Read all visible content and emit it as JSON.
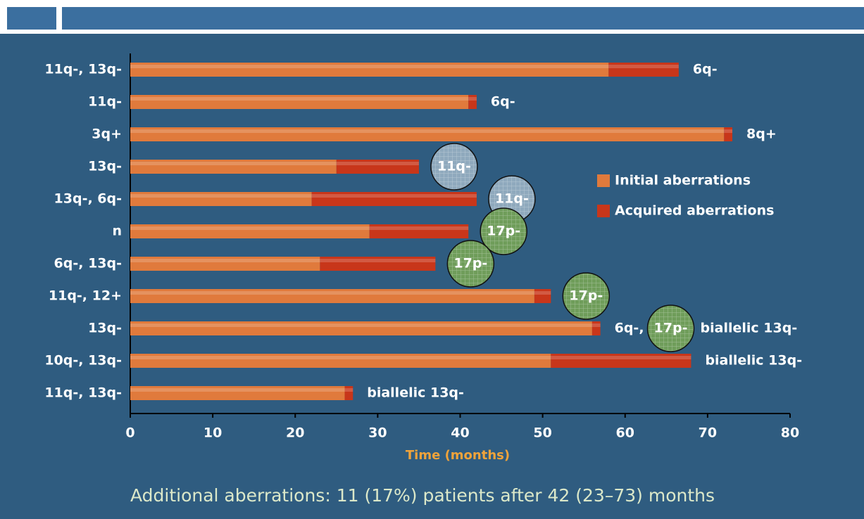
{
  "chart_data": {
    "type": "stacked-bar-horizontal",
    "categories": [
      "11q-, 13q-",
      "11q-",
      "3q+",
      "13q-",
      "13q-, 6q-",
      "n",
      "6q-, 13q-",
      "11q-, 12+",
      "13q-",
      "10q-, 13q-",
      "11q-, 13q-"
    ],
    "series": [
      {
        "name": "Initial aberrations",
        "color": "#e07a3c",
        "values": [
          58,
          41,
          72,
          25,
          22,
          29,
          23,
          49,
          56,
          51,
          26
        ]
      },
      {
        "name": "Acquired aberrations",
        "color": "#c8361a",
        "values": [
          8.5,
          1,
          1,
          10,
          20,
          12,
          14,
          2,
          1,
          17,
          1
        ]
      }
    ],
    "annotations": [
      [
        {
          "text": "6q-"
        }
      ],
      [
        {
          "text": "6q-"
        }
      ],
      [
        {
          "text": "8q+"
        }
      ],
      [
        {
          "text": "11q-",
          "circle": "#8fa9bd"
        }
      ],
      [
        {
          "text": "11q-",
          "circle": "#8fa9bd"
        }
      ],
      [
        {
          "text": "17p-",
          "circle": "#6f9d5a"
        }
      ],
      [
        {
          "text": "17p-",
          "circle": "#6f9d5a"
        }
      ],
      [
        {
          "text": "17p-",
          "circle": "#6f9d5a"
        }
      ],
      [
        {
          "text": "6q-,"
        },
        {
          "text": "17p-",
          "circle": "#6f9d5a"
        },
        {
          "text": "biallelic 13q-"
        }
      ],
      [
        {
          "text": "biallelic 13q-"
        }
      ],
      [
        {
          "text": "biallelic 13q-"
        }
      ]
    ],
    "xlim": [
      0,
      80
    ],
    "xticks": [
      0,
      10,
      20,
      30,
      40,
      50,
      60,
      70,
      80
    ],
    "xlabel": "Time (months)",
    "footnote": "Additional aberrations: 11 (17%) patients after 42 (23–73) months"
  }
}
